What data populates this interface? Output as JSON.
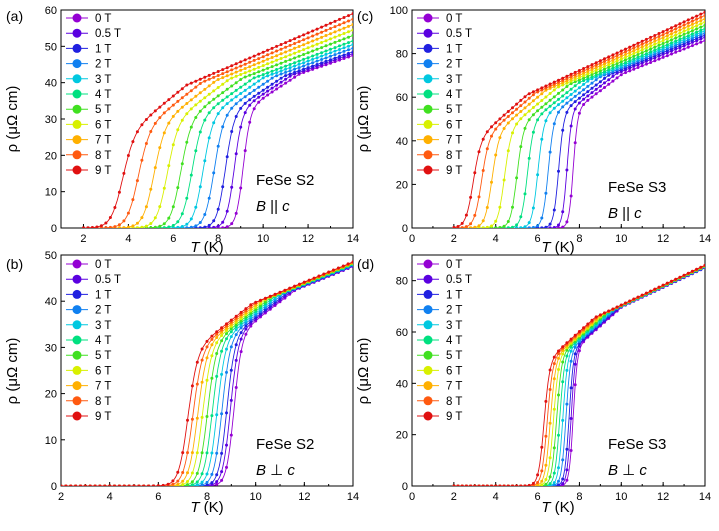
{
  "legend_labels": [
    "0 T",
    "0.5 T",
    "1 T",
    "2 T",
    "3 T",
    "4 T",
    "5 T",
    "6 T",
    "7 T",
    "8 T",
    "9 T"
  ],
  "series_colors": [
    "#9400D3",
    "#5A00E0",
    "#2020E0",
    "#1080F0",
    "#00C8E0",
    "#00E080",
    "#40E020",
    "#D8F000",
    "#FFB000",
    "#FF5A10",
    "#E01010"
  ],
  "chart_data": [
    {
      "type": "line",
      "panel_label": "(a)",
      "sample": "FeSe S2",
      "field_direction": "B || c",
      "field_symbol": "B",
      "field_relation": "||",
      "field_axis": "c",
      "xlabel_symbol": "T",
      "xlabel_unit": "(K)",
      "ylabel": "ρ (μΩ cm)",
      "xlim": [
        1,
        14
      ],
      "ylim": [
        0,
        60
      ],
      "xticks": [
        2,
        4,
        6,
        8,
        10,
        12,
        14
      ],
      "yticks": [
        0,
        10,
        20,
        30,
        40,
        50,
        60
      ],
      "series": [
        {
          "name": "0 T",
          "Tc": 9.1,
          "width": 0.45,
          "rho_at_14K": 47.5
        },
        {
          "name": "0.5 T",
          "Tc": 8.7,
          "width": 0.5,
          "rho_at_14K": 48
        },
        {
          "name": "1 T",
          "Tc": 8.3,
          "width": 0.55,
          "rho_at_14K": 48.5
        },
        {
          "name": "2 T",
          "Tc": 7.8,
          "width": 0.6,
          "rho_at_14K": 49.5
        },
        {
          "name": "3 T",
          "Tc": 7.3,
          "width": 0.62,
          "rho_at_14K": 50.5
        },
        {
          "name": "4 T",
          "Tc": 6.8,
          "width": 0.64,
          "rho_at_14K": 51.5
        },
        {
          "name": "5 T",
          "Tc": 6.3,
          "width": 0.66,
          "rho_at_14K": 53
        },
        {
          "name": "6 T",
          "Tc": 5.7,
          "width": 0.68,
          "rho_at_14K": 54.5
        },
        {
          "name": "7 T",
          "Tc": 5.1,
          "width": 0.7,
          "rho_at_14K": 56
        },
        {
          "name": "8 T",
          "Tc": 4.4,
          "width": 0.72,
          "rho_at_14K": 57.5
        },
        {
          "name": "9 T",
          "Tc": 3.7,
          "width": 0.75,
          "rho_at_14K": 59
        }
      ]
    },
    {
      "type": "line",
      "panel_label": "(c)",
      "sample": "FeSe S3",
      "field_direction": "B || c",
      "field_symbol": "B",
      "field_relation": "||",
      "field_axis": "c",
      "xlabel_symbol": "T",
      "xlabel_unit": "(K)",
      "ylabel": "ρ (μΩ cm)",
      "xlim": [
        0,
        14
      ],
      "ylim": [
        0,
        100
      ],
      "xticks": [
        0,
        2,
        4,
        6,
        8,
        10,
        12,
        14
      ],
      "yticks": [
        0,
        20,
        40,
        60,
        80,
        100
      ],
      "series": [
        {
          "name": "0 T",
          "Tc": 7.7,
          "width": 0.3,
          "rho_at_14K": 86
        },
        {
          "name": "0.5 T",
          "Tc": 7.4,
          "width": 0.32,
          "rho_at_14K": 87.5
        },
        {
          "name": "1 T",
          "Tc": 7.0,
          "width": 0.35,
          "rho_at_14K": 88.5
        },
        {
          "name": "2 T",
          "Tc": 6.5,
          "width": 0.38,
          "rho_at_14K": 89.5
        },
        {
          "name": "3 T",
          "Tc": 6.0,
          "width": 0.4,
          "rho_at_14K": 90.5
        },
        {
          "name": "4 T",
          "Tc": 5.5,
          "width": 0.42,
          "rho_at_14K": 91.5
        },
        {
          "name": "5 T",
          "Tc": 5.0,
          "width": 0.44,
          "rho_at_14K": 93
        },
        {
          "name": "6 T",
          "Tc": 4.4,
          "width": 0.46,
          "rho_at_14K": 94.5
        },
        {
          "name": "7 T",
          "Tc": 3.8,
          "width": 0.48,
          "rho_at_14K": 96
        },
        {
          "name": "8 T",
          "Tc": 3.3,
          "width": 0.5,
          "rho_at_14K": 97.5
        },
        {
          "name": "9 T",
          "Tc": 2.9,
          "width": 0.52,
          "rho_at_14K": 99
        }
      ]
    },
    {
      "type": "line",
      "panel_label": "(b)",
      "sample": "FeSe S2",
      "field_direction": "B ⊥ c",
      "field_symbol": "B",
      "field_relation": "⊥",
      "field_axis": "c",
      "xlabel_symbol": "T",
      "xlabel_unit": "(K)",
      "ylabel": "ρ (μΩ cm)",
      "xlim": [
        2,
        14
      ],
      "ylim": [
        0,
        50
      ],
      "xticks": [
        2,
        4,
        6,
        8,
        10,
        12,
        14
      ],
      "yticks": [
        0,
        10,
        20,
        30,
        40,
        50
      ],
      "series": [
        {
          "name": "0 T",
          "Tc": 9.1,
          "width": 0.45,
          "rho_at_14K": 47.5
        },
        {
          "name": "0.5 T",
          "Tc": 8.95,
          "width": 0.46,
          "rho_at_14K": 47.6
        },
        {
          "name": "1 T",
          "Tc": 8.8,
          "width": 0.47,
          "rho_at_14K": 47.7
        },
        {
          "name": "2 T",
          "Tc": 8.6,
          "width": 0.48,
          "rho_at_14K": 47.8
        },
        {
          "name": "3 T",
          "Tc": 8.4,
          "width": 0.49,
          "rho_at_14K": 47.9
        },
        {
          "name": "4 T",
          "Tc": 8.2,
          "width": 0.5,
          "rho_at_14K": 48
        },
        {
          "name": "5 T",
          "Tc": 8.0,
          "width": 0.51,
          "rho_at_14K": 48.1
        },
        {
          "name": "6 T",
          "Tc": 7.8,
          "width": 0.52,
          "rho_at_14K": 48.2
        },
        {
          "name": "7 T",
          "Tc": 7.6,
          "width": 0.53,
          "rho_at_14K": 48.3
        },
        {
          "name": "8 T",
          "Tc": 7.4,
          "width": 0.54,
          "rho_at_14K": 48.4
        },
        {
          "name": "9 T",
          "Tc": 7.2,
          "width": 0.55,
          "rho_at_14K": 48.5
        }
      ]
    },
    {
      "type": "line",
      "panel_label": "(d)",
      "sample": "FeSe S3",
      "field_direction": "B ⊥ c",
      "field_symbol": "B",
      "field_relation": "⊥",
      "field_axis": "c",
      "xlabel_symbol": "T",
      "xlabel_unit": "(K)",
      "ylabel": "ρ (μΩ cm)",
      "xlim": [
        0,
        14
      ],
      "ylim": [
        0,
        90
      ],
      "xticks": [
        0,
        2,
        4,
        6,
        8,
        10,
        12,
        14
      ],
      "yticks": [
        0,
        20,
        40,
        60,
        80
      ],
      "series": [
        {
          "name": "0 T",
          "Tc": 7.7,
          "width": 0.28,
          "rho_at_14K": 85
        },
        {
          "name": "0.5 T",
          "Tc": 7.6,
          "width": 0.29,
          "rho_at_14K": 85.1
        },
        {
          "name": "1 T",
          "Tc": 7.5,
          "width": 0.3,
          "rho_at_14K": 85.2
        },
        {
          "name": "2 T",
          "Tc": 7.35,
          "width": 0.31,
          "rho_at_14K": 85.3
        },
        {
          "name": "3 T",
          "Tc": 7.2,
          "width": 0.32,
          "rho_at_14K": 85.4
        },
        {
          "name": "4 T",
          "Tc": 7.05,
          "width": 0.33,
          "rho_at_14K": 85.5
        },
        {
          "name": "5 T",
          "Tc": 6.9,
          "width": 0.34,
          "rho_at_14K": 85.6
        },
        {
          "name": "6 T",
          "Tc": 6.75,
          "width": 0.35,
          "rho_at_14K": 85.7
        },
        {
          "name": "7 T",
          "Tc": 6.6,
          "width": 0.36,
          "rho_at_14K": 85.8
        },
        {
          "name": "8 T",
          "Tc": 6.45,
          "width": 0.37,
          "rho_at_14K": 85.9
        },
        {
          "name": "9 T",
          "Tc": 6.3,
          "width": 0.38,
          "rho_at_14K": 86
        }
      ]
    }
  ]
}
